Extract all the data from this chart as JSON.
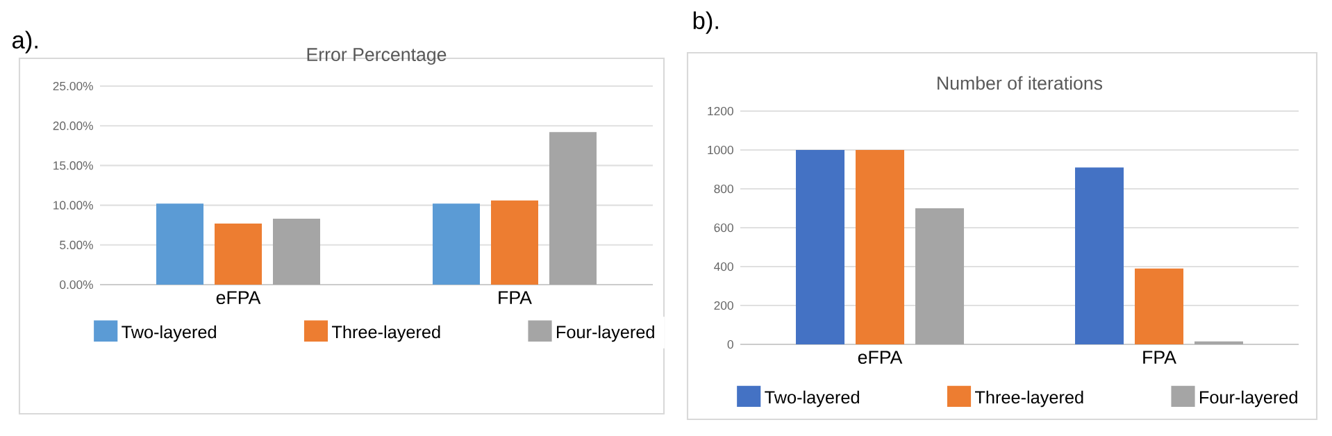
{
  "chart_data": [
    {
      "type": "bar",
      "title": "Error Percentage",
      "annotations": [
        "a)."
      ],
      "categories": [
        "eFPA",
        "FPA"
      ],
      "series": [
        {
          "name": "Two-layered",
          "color": "#5b9bd5",
          "values": [
            10.2,
            10.2
          ]
        },
        {
          "name": "Three-layered",
          "color": "#ed7d31",
          "values": [
            7.7,
            10.6
          ]
        },
        {
          "name": "Four-layered",
          "color": "#a5a5a5",
          "values": [
            8.3,
            19.2
          ]
        }
      ],
      "ylim": [
        0,
        25
      ],
      "yticks": [
        {
          "value": 0,
          "label": "0.00%"
        },
        {
          "value": 5,
          "label": "5.00%"
        },
        {
          "value": 10,
          "label": "10.00%"
        },
        {
          "value": 15,
          "label": "15.00%"
        },
        {
          "value": 20,
          "label": "20.00%"
        },
        {
          "value": 25,
          "label": "25.00%"
        }
      ],
      "grid": "y",
      "legend": "bottom"
    },
    {
      "type": "bar",
      "title": "Number of iterations",
      "annotations": [
        "b)."
      ],
      "categories": [
        "eFPA",
        "FPA"
      ],
      "series": [
        {
          "name": "Two-layered",
          "color": "#4472c4",
          "values": [
            1000,
            910
          ]
        },
        {
          "name": "Three-layered",
          "color": "#ed7d31",
          "values": [
            1000,
            390
          ]
        },
        {
          "name": "Four-layered",
          "color": "#a5a5a5",
          "values": [
            700,
            15
          ]
        }
      ],
      "ylim": [
        0,
        1200
      ],
      "yticks": [
        0,
        200,
        400,
        600,
        800,
        1000,
        1200
      ],
      "grid": "y",
      "legend": "bottom"
    }
  ]
}
